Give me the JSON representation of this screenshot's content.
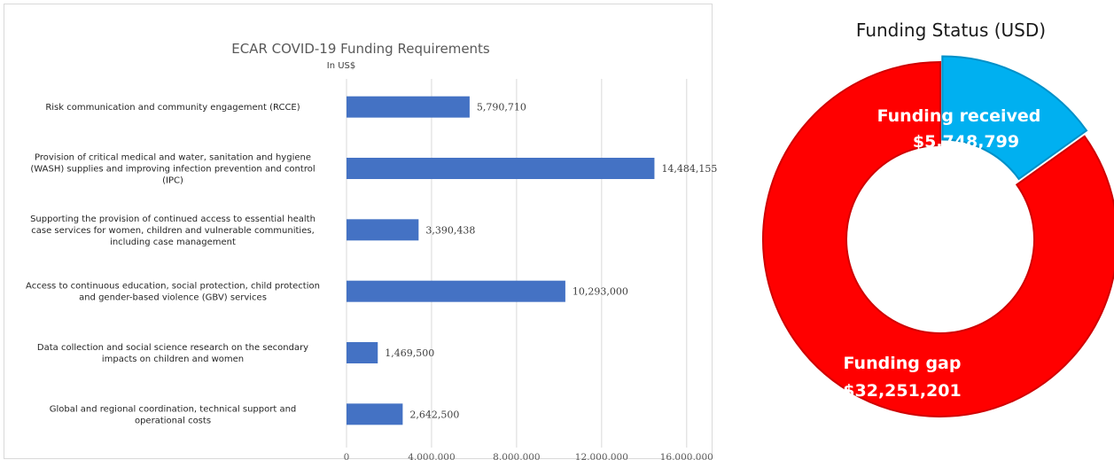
{
  "chart_data": [
    {
      "type": "bar",
      "orientation": "horizontal",
      "title": "ECAR COVID-19 Funding Requirements",
      "subtitle": "In US$",
      "categories": [
        [
          "Risk communication and community engagement (RCCE)"
        ],
        [
          "Provision of critical medical and water, sanitation and hygiene",
          "(WASH) supplies and improving infection prevention and control",
          "(IPC)"
        ],
        [
          "Supporting the provision of continued access to essential health",
          "case services for women, children and vulnerable communities,",
          "including case management"
        ],
        [
          "Access to continuous education, social protection, child protection",
          "and gender-based violence (GBV) services"
        ],
        [
          "Data collection and social science research on the secondary",
          "impacts on children and women"
        ],
        [
          "Global and regional coordination, technical support and",
          "operational costs"
        ]
      ],
      "values": [
        5790710,
        14484155,
        3390438,
        10293000,
        1469500,
        2642500
      ],
      "value_labels": [
        "5,790,710",
        "14,484,155",
        "3,390,438",
        "10,293,000",
        "1,469,500",
        "2,642,500"
      ],
      "xlim": [
        0,
        16800000
      ],
      "x_ticks": [
        0,
        4000000,
        8000000,
        12000000,
        16000000
      ],
      "x_tick_labels": [
        "0",
        "4,000,000",
        "8,000,000",
        "12,000,000",
        "16,000,000"
      ],
      "grid": true,
      "colors": {
        "bar": "#4472c4",
        "grid": "#d9d9d9"
      }
    },
    {
      "type": "pie",
      "variant": "donut",
      "title": "Funding Status (USD)",
      "slices": [
        {
          "label": "Funding received",
          "value_label": "$5,748,799",
          "value": 5748799,
          "color": "#00b0f0"
        },
        {
          "label": "Funding gap",
          "value_label": "$32,251,201",
          "value": 32251201,
          "color": "#ff0000"
        }
      ]
    }
  ]
}
